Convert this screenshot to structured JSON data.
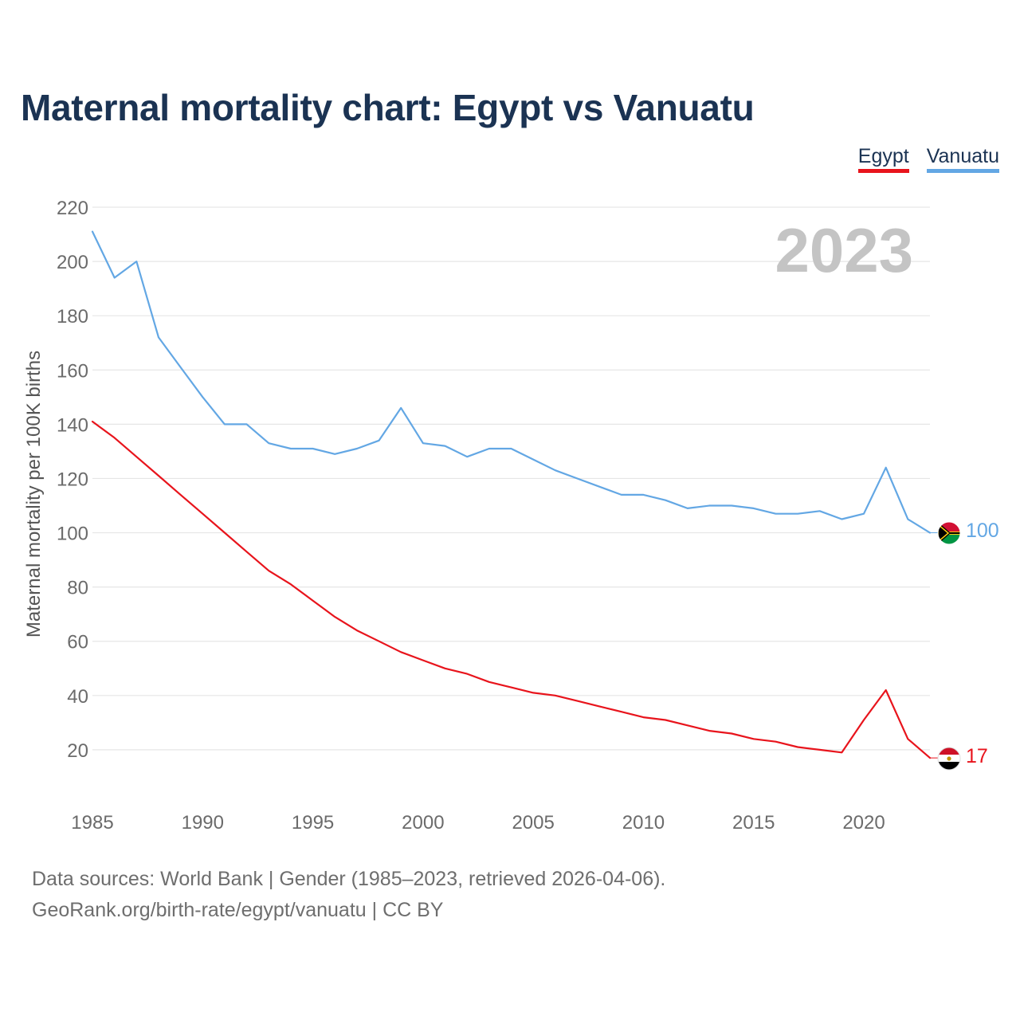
{
  "title": "Maternal mortality chart: Egypt vs Vanuatu",
  "legend": [
    {
      "label": "Egypt",
      "color": "#e8141c"
    },
    {
      "label": "Vanuatu",
      "color": "#63a7e4"
    }
  ],
  "year_badge": "2023",
  "footer": {
    "line1": "Data sources: World Bank | Gender (1985–2023, retrieved 2026-04-06).",
    "line2": "GeoRank.org/birth-rate/egypt/vanuatu | CC BY"
  },
  "chart_data": {
    "type": "line",
    "title": "Maternal mortality chart: Egypt vs Vanuatu",
    "xlabel": "",
    "ylabel": "Maternal mortality per 100K births",
    "xlim": [
      1985,
      2023
    ],
    "ylim": [
      0,
      220
    ],
    "xticks": [
      1985,
      1990,
      1995,
      2000,
      2005,
      2010,
      2015,
      2020
    ],
    "yticks": [
      20,
      40,
      60,
      80,
      100,
      120,
      140,
      160,
      180,
      200,
      220
    ],
    "grid": true,
    "legend_position": "top-right",
    "x": [
      1985,
      1986,
      1987,
      1988,
      1989,
      1990,
      1991,
      1992,
      1993,
      1994,
      1995,
      1996,
      1997,
      1998,
      1999,
      2000,
      2001,
      2002,
      2003,
      2004,
      2005,
      2006,
      2007,
      2008,
      2009,
      2010,
      2011,
      2012,
      2013,
      2014,
      2015,
      2016,
      2017,
      2018,
      2019,
      2020,
      2021,
      2022,
      2023
    ],
    "series": [
      {
        "name": "Egypt",
        "color": "#e8141c",
        "end_label": "17",
        "values": [
          141,
          135,
          128,
          121,
          114,
          107,
          100,
          93,
          86,
          81,
          75,
          69,
          64,
          60,
          56,
          53,
          50,
          48,
          45,
          43,
          41,
          40,
          38,
          36,
          34,
          32,
          31,
          29,
          27,
          26,
          24,
          23,
          21,
          20,
          19,
          31,
          42,
          24,
          17
        ]
      },
      {
        "name": "Vanuatu",
        "color": "#63a7e4",
        "end_label": "100",
        "values": [
          211,
          194,
          200,
          172,
          161,
          150,
          140,
          140,
          133,
          131,
          131,
          129,
          131,
          134,
          146,
          133,
          132,
          128,
          131,
          131,
          127,
          123,
          120,
          117,
          114,
          114,
          112,
          109,
          110,
          110,
          109,
          107,
          107,
          108,
          105,
          107,
          124,
          105,
          100
        ]
      }
    ]
  }
}
